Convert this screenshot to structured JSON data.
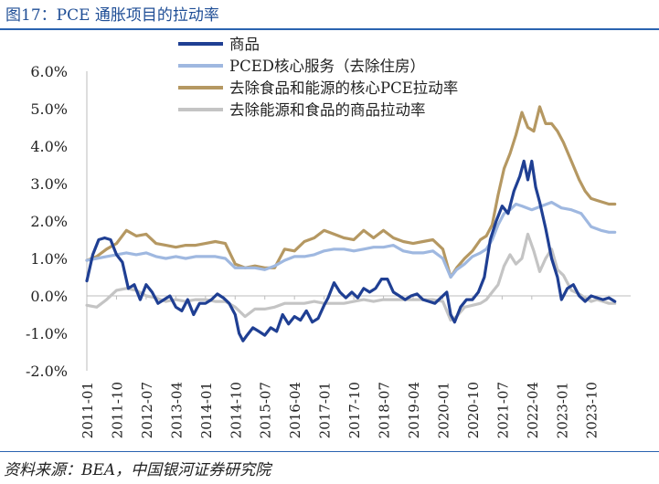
{
  "title": "图17：PCE 通胀项目的拉动率",
  "source": "资料来源：BEA，中国银河证券研究院",
  "chart_data": {
    "type": "line",
    "ylim": [
      -2.0,
      6.0
    ],
    "yticks": [
      "-2.0%",
      "-1.0%",
      "0.0%",
      "1.0%",
      "2.0%",
      "3.0%",
      "4.0%",
      "5.0%",
      "6.0%"
    ],
    "ytick_values": [
      -2,
      -1,
      0,
      1,
      2,
      3,
      4,
      5,
      6
    ],
    "x_range": [
      2011.0,
      2024.75
    ],
    "xticks": [
      "2011-01",
      "2011-10",
      "2012-07",
      "2013-04",
      "2014-01",
      "2014-10",
      "2015-07",
      "2016-04",
      "2017-01",
      "2017-10",
      "2018-07",
      "2019-04",
      "2020-01",
      "2020-10",
      "2021-07",
      "2022-04",
      "2023-01",
      "2023-10"
    ],
    "xtick_values": [
      2011.0,
      2011.75,
      2012.5,
      2013.25,
      2014.0,
      2014.75,
      2015.5,
      2016.25,
      2017.0,
      2017.75,
      2018.5,
      2019.25,
      2020.0,
      2020.75,
      2021.5,
      2022.25,
      2023.0,
      2023.75
    ],
    "legend_position": "top",
    "series": [
      {
        "name": "商品",
        "color": "#1f3f93",
        "x": [
          2011.0,
          2011.15,
          2011.3,
          2011.45,
          2011.6,
          2011.75,
          2011.9,
          2012.05,
          2012.2,
          2012.35,
          2012.5,
          2012.65,
          2012.8,
          2012.95,
          2013.1,
          2013.25,
          2013.4,
          2013.55,
          2013.7,
          2013.85,
          2014.0,
          2014.15,
          2014.3,
          2014.45,
          2014.6,
          2014.75,
          2014.85,
          2014.95,
          2015.05,
          2015.2,
          2015.35,
          2015.5,
          2015.65,
          2015.8,
          2015.95,
          2016.1,
          2016.25,
          2016.4,
          2016.55,
          2016.7,
          2016.85,
          2017.0,
          2017.1,
          2017.25,
          2017.4,
          2017.55,
          2017.7,
          2017.85,
          2018.0,
          2018.15,
          2018.3,
          2018.45,
          2018.6,
          2018.75,
          2018.9,
          2019.05,
          2019.2,
          2019.35,
          2019.5,
          2019.65,
          2019.8,
          2019.95,
          2020.1,
          2020.2,
          2020.3,
          2020.45,
          2020.6,
          2020.75,
          2020.9,
          2021.05,
          2021.2,
          2021.35,
          2021.5,
          2021.65,
          2021.8,
          2021.95,
          2022.05,
          2022.15,
          2022.25,
          2022.35,
          2022.45,
          2022.6,
          2022.75,
          2022.9,
          2023.0,
          2023.15,
          2023.3,
          2023.45,
          2023.6,
          2023.75,
          2023.9,
          2024.05,
          2024.2,
          2024.35
        ],
        "values": [
          0.4,
          1.1,
          1.5,
          1.55,
          1.5,
          1.1,
          0.9,
          0.2,
          0.3,
          -0.1,
          0.3,
          0.1,
          -0.2,
          -0.1,
          0.0,
          -0.3,
          -0.4,
          -0.1,
          -0.5,
          -0.2,
          -0.2,
          -0.1,
          0.05,
          -0.05,
          -0.2,
          -0.5,
          -1.0,
          -1.2,
          -1.05,
          -0.85,
          -0.95,
          -1.05,
          -0.85,
          -0.95,
          -0.5,
          -0.75,
          -0.55,
          -0.65,
          -0.4,
          -0.7,
          -0.6,
          -0.25,
          -0.05,
          0.35,
          0.1,
          -0.05,
          0.1,
          -0.05,
          0.2,
          0.1,
          0.2,
          0.45,
          0.45,
          0.1,
          0.0,
          -0.1,
          0.0,
          0.05,
          -0.1,
          -0.15,
          -0.2,
          -0.05,
          0.1,
          -0.5,
          -0.7,
          -0.3,
          -0.1,
          -0.1,
          0.1,
          0.5,
          1.5,
          2.0,
          2.4,
          2.2,
          2.8,
          3.2,
          3.6,
          3.1,
          3.6,
          2.9,
          2.5,
          1.8,
          1.0,
          0.5,
          -0.1,
          0.2,
          0.3,
          0.0,
          -0.15,
          0.0,
          -0.05,
          -0.1,
          -0.05,
          -0.15
        ]
      },
      {
        "name": "PCED核心服务（去除住房）",
        "color": "#9fb8e0",
        "x": [
          2011.0,
          2011.25,
          2011.5,
          2011.75,
          2012.0,
          2012.25,
          2012.5,
          2012.75,
          2013.0,
          2013.25,
          2013.5,
          2013.75,
          2014.0,
          2014.25,
          2014.5,
          2014.75,
          2015.0,
          2015.25,
          2015.5,
          2015.75,
          2016.0,
          2016.25,
          2016.5,
          2016.75,
          2017.0,
          2017.25,
          2017.5,
          2017.75,
          2018.0,
          2018.25,
          2018.5,
          2018.75,
          2019.0,
          2019.25,
          2019.5,
          2019.75,
          2020.0,
          2020.2,
          2020.35,
          2020.55,
          2020.75,
          2020.95,
          2021.1,
          2021.25,
          2021.4,
          2021.55,
          2021.7,
          2021.85,
          2022.0,
          2022.25,
          2022.5,
          2022.75,
          2023.0,
          2023.25,
          2023.5,
          2023.75,
          2024.0,
          2024.2,
          2024.35
        ],
        "values": [
          0.95,
          1.0,
          1.05,
          1.1,
          1.15,
          1.1,
          1.15,
          1.05,
          1.0,
          1.05,
          1.0,
          1.05,
          1.05,
          1.05,
          1.0,
          0.75,
          0.75,
          0.75,
          0.7,
          0.8,
          0.95,
          1.05,
          1.05,
          1.1,
          1.2,
          1.25,
          1.25,
          1.2,
          1.25,
          1.3,
          1.3,
          1.35,
          1.2,
          1.15,
          1.15,
          1.2,
          1.0,
          0.5,
          0.7,
          0.85,
          1.05,
          1.15,
          1.25,
          1.5,
          1.9,
          2.2,
          2.3,
          2.45,
          2.4,
          2.3,
          2.4,
          2.5,
          2.35,
          2.3,
          2.2,
          1.85,
          1.75,
          1.7,
          1.7
        ]
      },
      {
        "name": "去除食品和能源的核心PCE拉动率",
        "color": "#b59862",
        "x": [
          2011.0,
          2011.25,
          2011.5,
          2011.75,
          2012.0,
          2012.25,
          2012.5,
          2012.75,
          2013.0,
          2013.25,
          2013.5,
          2013.75,
          2014.0,
          2014.25,
          2014.5,
          2014.75,
          2015.0,
          2015.25,
          2015.5,
          2015.75,
          2016.0,
          2016.25,
          2016.5,
          2016.75,
          2017.0,
          2017.25,
          2017.5,
          2017.75,
          2018.0,
          2018.25,
          2018.5,
          2018.75,
          2019.0,
          2019.25,
          2019.5,
          2019.75,
          2020.0,
          2020.2,
          2020.35,
          2020.55,
          2020.75,
          2020.95,
          2021.1,
          2021.25,
          2021.4,
          2021.55,
          2021.7,
          2021.85,
          2022.0,
          2022.15,
          2022.3,
          2022.45,
          2022.6,
          2022.75,
          2022.9,
          2023.05,
          2023.25,
          2023.45,
          2023.6,
          2023.75,
          2023.9,
          2024.05,
          2024.2,
          2024.35
        ],
        "values": [
          0.95,
          1.05,
          1.25,
          1.4,
          1.75,
          1.6,
          1.65,
          1.4,
          1.35,
          1.3,
          1.35,
          1.35,
          1.4,
          1.45,
          1.4,
          0.85,
          0.75,
          0.8,
          0.75,
          0.75,
          1.25,
          1.2,
          1.45,
          1.55,
          1.75,
          1.65,
          1.55,
          1.5,
          1.75,
          1.55,
          1.75,
          1.55,
          1.45,
          1.4,
          1.45,
          1.5,
          1.25,
          0.5,
          0.75,
          1.0,
          1.2,
          1.5,
          1.6,
          1.9,
          2.7,
          3.4,
          3.8,
          4.3,
          4.9,
          4.5,
          4.4,
          5.05,
          4.6,
          4.6,
          4.4,
          4.1,
          3.6,
          3.1,
          2.8,
          2.6,
          2.55,
          2.5,
          2.45,
          2.45
        ]
      },
      {
        "name": "去除能源和食品的商品拉动率",
        "color": "#c4c4c4",
        "x": [
          2011.0,
          2011.25,
          2011.5,
          2011.75,
          2012.0,
          2012.25,
          2012.5,
          2012.75,
          2013.0,
          2013.25,
          2013.5,
          2013.75,
          2014.0,
          2014.25,
          2014.5,
          2014.75,
          2015.0,
          2015.25,
          2015.5,
          2015.75,
          2016.0,
          2016.25,
          2016.5,
          2016.75,
          2017.0,
          2017.25,
          2017.5,
          2017.75,
          2018.0,
          2018.25,
          2018.5,
          2018.75,
          2019.0,
          2019.25,
          2019.5,
          2019.75,
          2020.0,
          2020.2,
          2020.35,
          2020.55,
          2020.75,
          2020.95,
          2021.1,
          2021.25,
          2021.4,
          2021.55,
          2021.7,
          2021.85,
          2022.0,
          2022.15,
          2022.3,
          2022.45,
          2022.6,
          2022.75,
          2022.9,
          2023.05,
          2023.25,
          2023.45,
          2023.6,
          2023.75,
          2023.9,
          2024.05,
          2024.2,
          2024.35
        ],
        "values": [
          -0.25,
          -0.3,
          -0.1,
          0.15,
          0.2,
          0.15,
          0.0,
          -0.05,
          -0.15,
          -0.1,
          -0.15,
          -0.1,
          -0.1,
          -0.15,
          -0.15,
          -0.3,
          -0.55,
          -0.35,
          -0.35,
          -0.3,
          -0.2,
          -0.2,
          -0.2,
          -0.15,
          -0.2,
          -0.2,
          -0.2,
          -0.15,
          -0.1,
          -0.15,
          -0.1,
          -0.1,
          -0.1,
          -0.1,
          -0.1,
          -0.1,
          -0.15,
          -0.65,
          -0.55,
          -0.3,
          -0.25,
          -0.2,
          -0.1,
          0.1,
          0.3,
          0.8,
          1.1,
          0.85,
          1.0,
          1.65,
          1.2,
          0.65,
          1.0,
          1.25,
          0.7,
          0.55,
          0.15,
          0.05,
          -0.05,
          -0.15,
          -0.1,
          -0.15,
          -0.2,
          -0.2
        ]
      }
    ]
  }
}
